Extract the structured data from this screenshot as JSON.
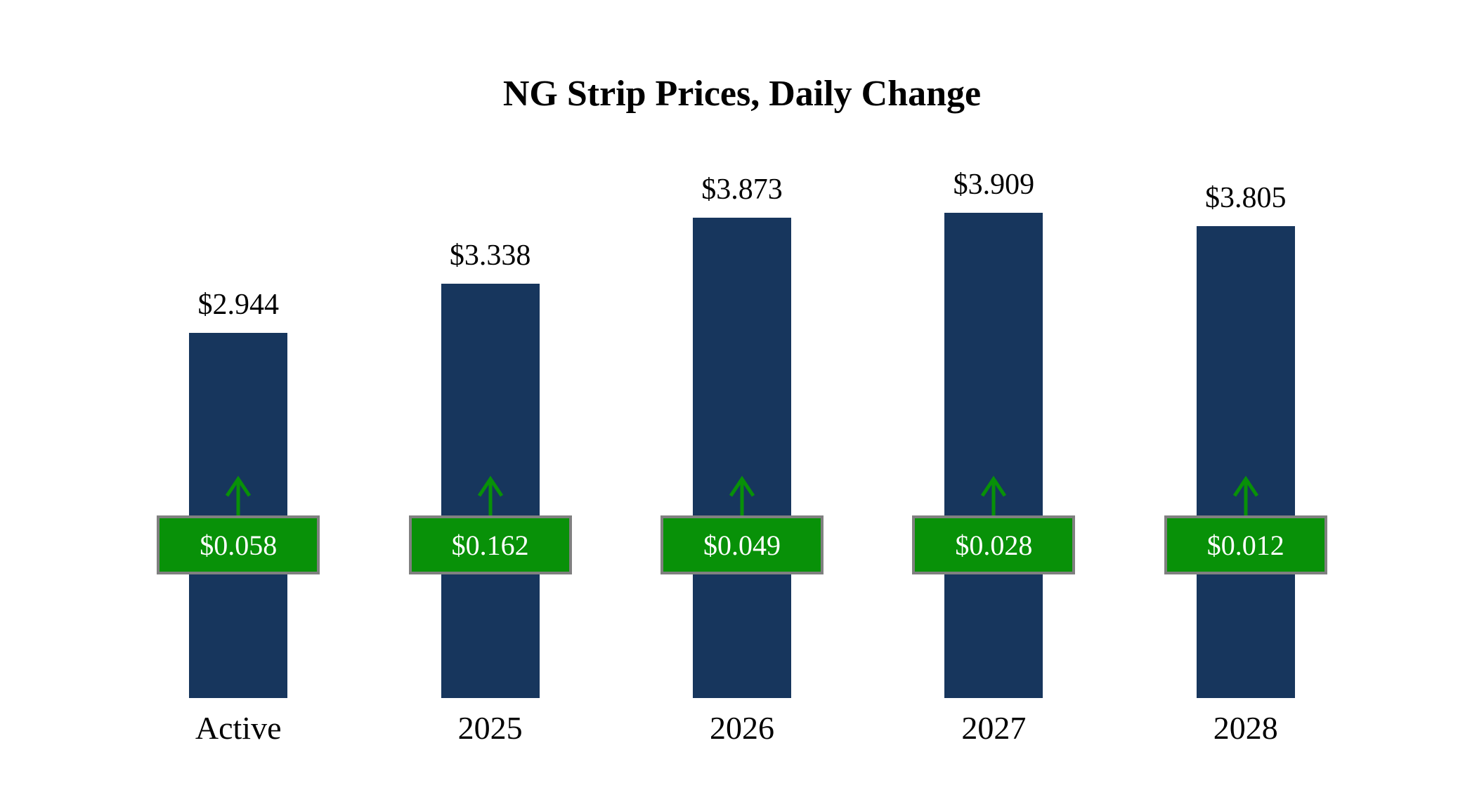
{
  "chart_data": {
    "type": "bar",
    "title": "NG Strip Prices, Daily Change",
    "categories": [
      "Active",
      "2025",
      "2026",
      "2027",
      "2028"
    ],
    "series": [
      {
        "name": "Strip Price",
        "values": [
          2.944,
          3.338,
          3.873,
          3.909,
          3.805
        ]
      },
      {
        "name": "Daily Change",
        "values": [
          0.058,
          0.162,
          0.049,
          0.028,
          0.012
        ]
      }
    ],
    "value_labels": [
      "$2.944",
      "$3.338",
      "$3.873",
      "$3.909",
      "$3.805"
    ],
    "change_labels": [
      "$0.058",
      "$0.162",
      "$0.049",
      "$0.028",
      "$0.012"
    ],
    "change_direction": "up",
    "ylim": [
      0,
      4.5
    ],
    "grid": false,
    "legend": false,
    "colors": {
      "bar": "#17365D",
      "change_badge": "#089108",
      "badge_border": "#808080",
      "badge_text": "#FFFFFF",
      "arrow": "#089108",
      "title": "#000000"
    }
  }
}
